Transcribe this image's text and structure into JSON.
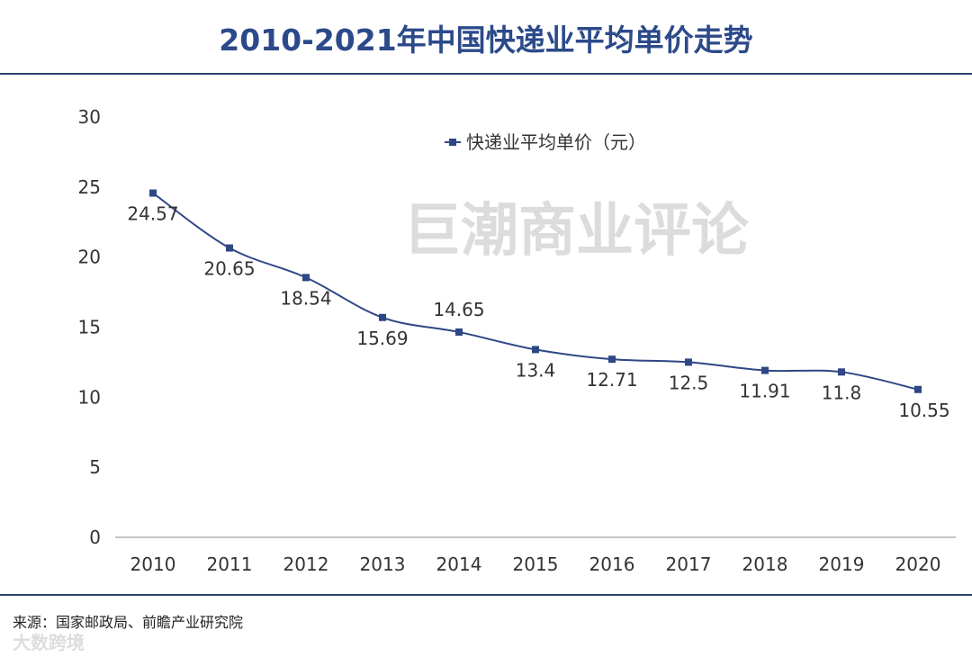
{
  "title": "2010-2021年中国快递业平均单价走势",
  "source": "来源：国家邮政局、前瞻产业研究院",
  "watermarks": {
    "center": "巨潮商业评论",
    "corner": "大数跨境"
  },
  "colors": {
    "series": "#2e4785",
    "title": "#2c4a8a",
    "rule": "#2f4370"
  },
  "chart_data": {
    "type": "line",
    "categories": [
      "2010",
      "2011",
      "2012",
      "2013",
      "2014",
      "2015",
      "2016",
      "2017",
      "2018",
      "2019",
      "2020"
    ],
    "series": [
      {
        "name": "快递业平均单价（元）",
        "values": [
          24.57,
          20.65,
          18.54,
          15.69,
          14.65,
          13.4,
          12.71,
          12.5,
          11.91,
          11.8,
          10.55
        ]
      }
    ],
    "data_labels": [
      "24.57",
      "20.65",
      "18.54",
      "15.69",
      "14.65",
      "13.4",
      "12.71",
      "12.5",
      "11.91",
      "11.8",
      "10.55"
    ],
    "yticks": [
      "0",
      "5",
      "10",
      "15",
      "20",
      "25",
      "30"
    ],
    "ylim": [
      0,
      30
    ],
    "smooth": true,
    "grid": false,
    "legend": "top-center",
    "marker": "square"
  }
}
